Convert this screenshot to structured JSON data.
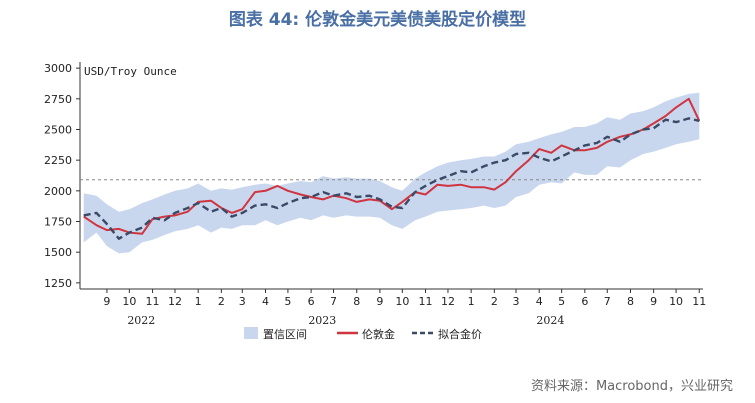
{
  "title": "图表 44: 伦敦金美元美债美股定价模型",
  "source": "资料来源：Macrobond，兴业研究",
  "chart_data": {
    "type": "line",
    "unit_label": "USD/Troy Ounce",
    "ylim": [
      1200,
      3050
    ],
    "yticks": [
      1250,
      1500,
      1750,
      2000,
      2250,
      2500,
      2750,
      3000
    ],
    "xlim": [
      "2022-08-10",
      "2024-11-20"
    ],
    "month_ticks": [
      {
        "label": "9",
        "date": "2022-09-15"
      },
      {
        "label": "10",
        "date": "2022-10-15"
      },
      {
        "label": "11",
        "date": "2022-11-15"
      },
      {
        "label": "12",
        "date": "2022-12-15"
      },
      {
        "label": "1",
        "date": "2023-01-15"
      },
      {
        "label": "2",
        "date": "2023-02-15"
      },
      {
        "label": "3",
        "date": "2023-03-15"
      },
      {
        "label": "4",
        "date": "2023-04-15"
      },
      {
        "label": "5",
        "date": "2023-05-15"
      },
      {
        "label": "6",
        "date": "2023-06-15"
      },
      {
        "label": "7",
        "date": "2023-07-15"
      },
      {
        "label": "8",
        "date": "2023-08-15"
      },
      {
        "label": "9",
        "date": "2023-09-15"
      },
      {
        "label": "10",
        "date": "2023-10-15"
      },
      {
        "label": "11",
        "date": "2023-11-15"
      },
      {
        "label": "12",
        "date": "2023-12-15"
      },
      {
        "label": "1",
        "date": "2024-01-15"
      },
      {
        "label": "2",
        "date": "2024-02-15"
      },
      {
        "label": "3",
        "date": "2024-03-15"
      },
      {
        "label": "4",
        "date": "2024-04-15"
      },
      {
        "label": "5",
        "date": "2024-05-15"
      },
      {
        "label": "6",
        "date": "2024-06-15"
      },
      {
        "label": "7",
        "date": "2024-07-15"
      },
      {
        "label": "8",
        "date": "2024-08-15"
      },
      {
        "label": "9",
        "date": "2024-09-15"
      },
      {
        "label": "10",
        "date": "2024-10-15"
      },
      {
        "label": "11",
        "date": "2024-11-15"
      }
    ],
    "year_labels": [
      {
        "label": "2022",
        "date": "2022-10-31"
      },
      {
        "label": "2023",
        "date": "2023-06-30"
      },
      {
        "label": "2024",
        "date": "2024-04-30"
      }
    ],
    "reference_line": {
      "y": 2090,
      "style": "dashed"
    },
    "x": [
      "2022-08-15",
      "2022-09-01",
      "2022-09-15",
      "2022-10-01",
      "2022-10-15",
      "2022-11-01",
      "2022-11-15",
      "2022-12-01",
      "2022-12-15",
      "2023-01-01",
      "2023-01-15",
      "2023-02-01",
      "2023-02-15",
      "2023-03-01",
      "2023-03-15",
      "2023-04-01",
      "2023-04-15",
      "2023-05-01",
      "2023-05-15",
      "2023-06-01",
      "2023-06-15",
      "2023-07-01",
      "2023-07-15",
      "2023-08-01",
      "2023-08-15",
      "2023-09-01",
      "2023-09-15",
      "2023-10-01",
      "2023-10-15",
      "2023-11-01",
      "2023-11-15",
      "2023-12-01",
      "2023-12-15",
      "2024-01-01",
      "2024-01-15",
      "2024-02-01",
      "2024-02-15",
      "2024-03-01",
      "2024-03-15",
      "2024-04-01",
      "2024-04-15",
      "2024-05-01",
      "2024-05-15",
      "2024-06-01",
      "2024-06-15",
      "2024-07-01",
      "2024-07-15",
      "2024-08-01",
      "2024-08-15",
      "2024-09-01",
      "2024-09-15",
      "2024-10-01",
      "2024-10-15",
      "2024-11-01",
      "2024-11-15"
    ],
    "series": [
      {
        "name": "置信区间",
        "kind": "band",
        "color": "#c9d7ee",
        "lower": [
          1580,
          1660,
          1550,
          1490,
          1500,
          1580,
          1600,
          1640,
          1670,
          1690,
          1720,
          1660,
          1700,
          1690,
          1720,
          1720,
          1760,
          1720,
          1750,
          1780,
          1760,
          1800,
          1780,
          1800,
          1790,
          1790,
          1780,
          1720,
          1690,
          1760,
          1790,
          1830,
          1840,
          1850,
          1860,
          1880,
          1860,
          1880,
          1950,
          1980,
          2050,
          2070,
          2060,
          2150,
          2130,
          2130,
          2200,
          2190,
          2250,
          2300,
          2320,
          2350,
          2380,
          2400,
          2420
        ],
        "upper": [
          1980,
          1960,
          1890,
          1830,
          1850,
          1900,
          1930,
          1970,
          2000,
          2020,
          2060,
          2000,
          2020,
          2010,
          2030,
          2050,
          2060,
          2040,
          2060,
          2080,
          2070,
          2120,
          2100,
          2110,
          2100,
          2100,
          2080,
          2030,
          2000,
          2100,
          2150,
          2200,
          2230,
          2250,
          2260,
          2280,
          2280,
          2320,
          2380,
          2400,
          2430,
          2460,
          2480,
          2520,
          2520,
          2550,
          2600,
          2580,
          2630,
          2650,
          2680,
          2730,
          2760,
          2790,
          2800
        ]
      },
      {
        "name": "伦敦金",
        "kind": "line",
        "color": "#d0343f",
        "values": [
          1790,
          1720,
          1680,
          1690,
          1660,
          1650,
          1770,
          1790,
          1800,
          1830,
          1910,
          1920,
          1860,
          1820,
          1850,
          1990,
          2000,
          2040,
          2000,
          1970,
          1950,
          1930,
          1960,
          1940,
          1910,
          1930,
          1920,
          1850,
          1910,
          1990,
          1970,
          2050,
          2040,
          2050,
          2030,
          2030,
          2010,
          2070,
          2160,
          2250,
          2340,
          2310,
          2370,
          2330,
          2330,
          2350,
          2400,
          2440,
          2460,
          2500,
          2550,
          2610,
          2680,
          2750,
          2570
        ]
      },
      {
        "name": "拟合金价",
        "kind": "line",
        "color": "#3a4a66",
        "dashed": true,
        "values": [
          1800,
          1820,
          1730,
          1610,
          1660,
          1700,
          1780,
          1760,
          1820,
          1860,
          1900,
          1830,
          1860,
          1790,
          1820,
          1880,
          1890,
          1860,
          1900,
          1940,
          1950,
          1990,
          1960,
          1980,
          1950,
          1960,
          1930,
          1870,
          1860,
          1990,
          2040,
          2090,
          2120,
          2160,
          2150,
          2200,
          2230,
          2250,
          2300,
          2310,
          2270,
          2240,
          2280,
          2330,
          2370,
          2390,
          2440,
          2400,
          2460,
          2500,
          2510,
          2580,
          2560,
          2590,
          2570
        ]
      }
    ]
  }
}
